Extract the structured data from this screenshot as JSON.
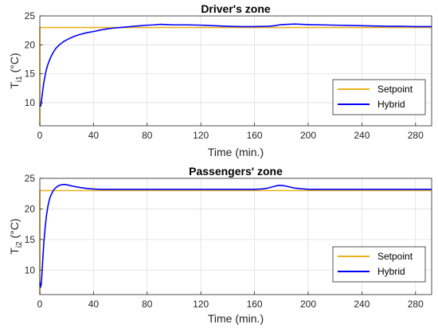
{
  "chart_data": [
    {
      "type": "line",
      "title": "Driver's zone",
      "xlabel": "Time (min.)",
      "ylabel": {
        "main": "T",
        "sub": "i1",
        "unit": " (°C)"
      },
      "xlim": [
        0,
        292
      ],
      "ylim": [
        6,
        25
      ],
      "xticks": [
        0,
        40,
        80,
        120,
        160,
        200,
        240,
        280
      ],
      "yticks": [
        10,
        15,
        20,
        25
      ],
      "grid": true,
      "legend": "bottom-right",
      "series": [
        {
          "name": "Setpoint",
          "color": "#EDB120",
          "x": [
            0,
            0,
            292
          ],
          "y": [
            6,
            23,
            23
          ]
        },
        {
          "name": "Hybrid",
          "color": "#0000FF",
          "x": [
            0,
            0.5,
            1,
            1.5,
            2,
            3,
            4,
            5,
            6,
            8,
            10,
            12,
            15,
            18,
            22,
            26,
            30,
            35,
            40,
            45,
            50,
            55,
            60,
            65,
            70,
            75,
            80,
            85,
            90,
            95,
            100,
            110,
            120,
            130,
            140,
            150,
            160,
            170,
            175,
            180,
            185,
            190,
            195,
            200,
            210,
            220,
            230,
            240,
            250,
            260,
            270,
            280,
            292
          ],
          "y": [
            9.6,
            9.4,
            9.8,
            10.8,
            11.8,
            13.5,
            14.8,
            15.8,
            16.6,
            17.8,
            18.7,
            19.4,
            20.1,
            20.6,
            21.1,
            21.5,
            21.8,
            22.1,
            22.3,
            22.55,
            22.75,
            22.9,
            23.0,
            23.1,
            23.2,
            23.3,
            23.4,
            23.45,
            23.55,
            23.5,
            23.45,
            23.45,
            23.4,
            23.3,
            23.2,
            23.15,
            23.15,
            23.2,
            23.3,
            23.5,
            23.55,
            23.6,
            23.55,
            23.5,
            23.45,
            23.4,
            23.35,
            23.3,
            23.25,
            23.2,
            23.2,
            23.15,
            23.15
          ]
        }
      ]
    },
    {
      "type": "line",
      "title": "Passengers' zone",
      "xlabel": "Time (min.)",
      "ylabel": {
        "main": "T",
        "sub": "i2",
        "unit": " (°C)"
      },
      "xlim": [
        0,
        292
      ],
      "ylim": [
        6,
        25
      ],
      "xticks": [
        0,
        40,
        80,
        120,
        160,
        200,
        240,
        280
      ],
      "yticks": [
        10,
        15,
        20,
        25
      ],
      "grid": true,
      "legend": "bottom-right",
      "series": [
        {
          "name": "Setpoint",
          "color": "#EDB120",
          "x": [
            0,
            0,
            292
          ],
          "y": [
            6,
            23,
            23
          ]
        },
        {
          "name": "Hybrid",
          "color": "#0000FF",
          "x": [
            0,
            0.5,
            1,
            1.5,
            2,
            3,
            4,
            5,
            6,
            7,
            8,
            10,
            12,
            14,
            16,
            18,
            20,
            22,
            25,
            30,
            35,
            40,
            45,
            50,
            60,
            80,
            100,
            120,
            140,
            160,
            165,
            170,
            175,
            178,
            182,
            186,
            190,
            195,
            200,
            220,
            240,
            260,
            280,
            292
          ],
          "y": [
            8.0,
            7.2,
            7.6,
            9.0,
            11.0,
            14.5,
            17.0,
            19.0,
            20.4,
            21.4,
            22.1,
            23.0,
            23.5,
            23.8,
            23.95,
            24.0,
            23.95,
            23.85,
            23.7,
            23.5,
            23.35,
            23.25,
            23.2,
            23.2,
            23.2,
            23.2,
            23.2,
            23.2,
            23.2,
            23.2,
            23.25,
            23.4,
            23.7,
            23.85,
            23.8,
            23.6,
            23.4,
            23.3,
            23.2,
            23.2,
            23.2,
            23.2,
            23.2,
            23.2
          ]
        }
      ]
    }
  ]
}
